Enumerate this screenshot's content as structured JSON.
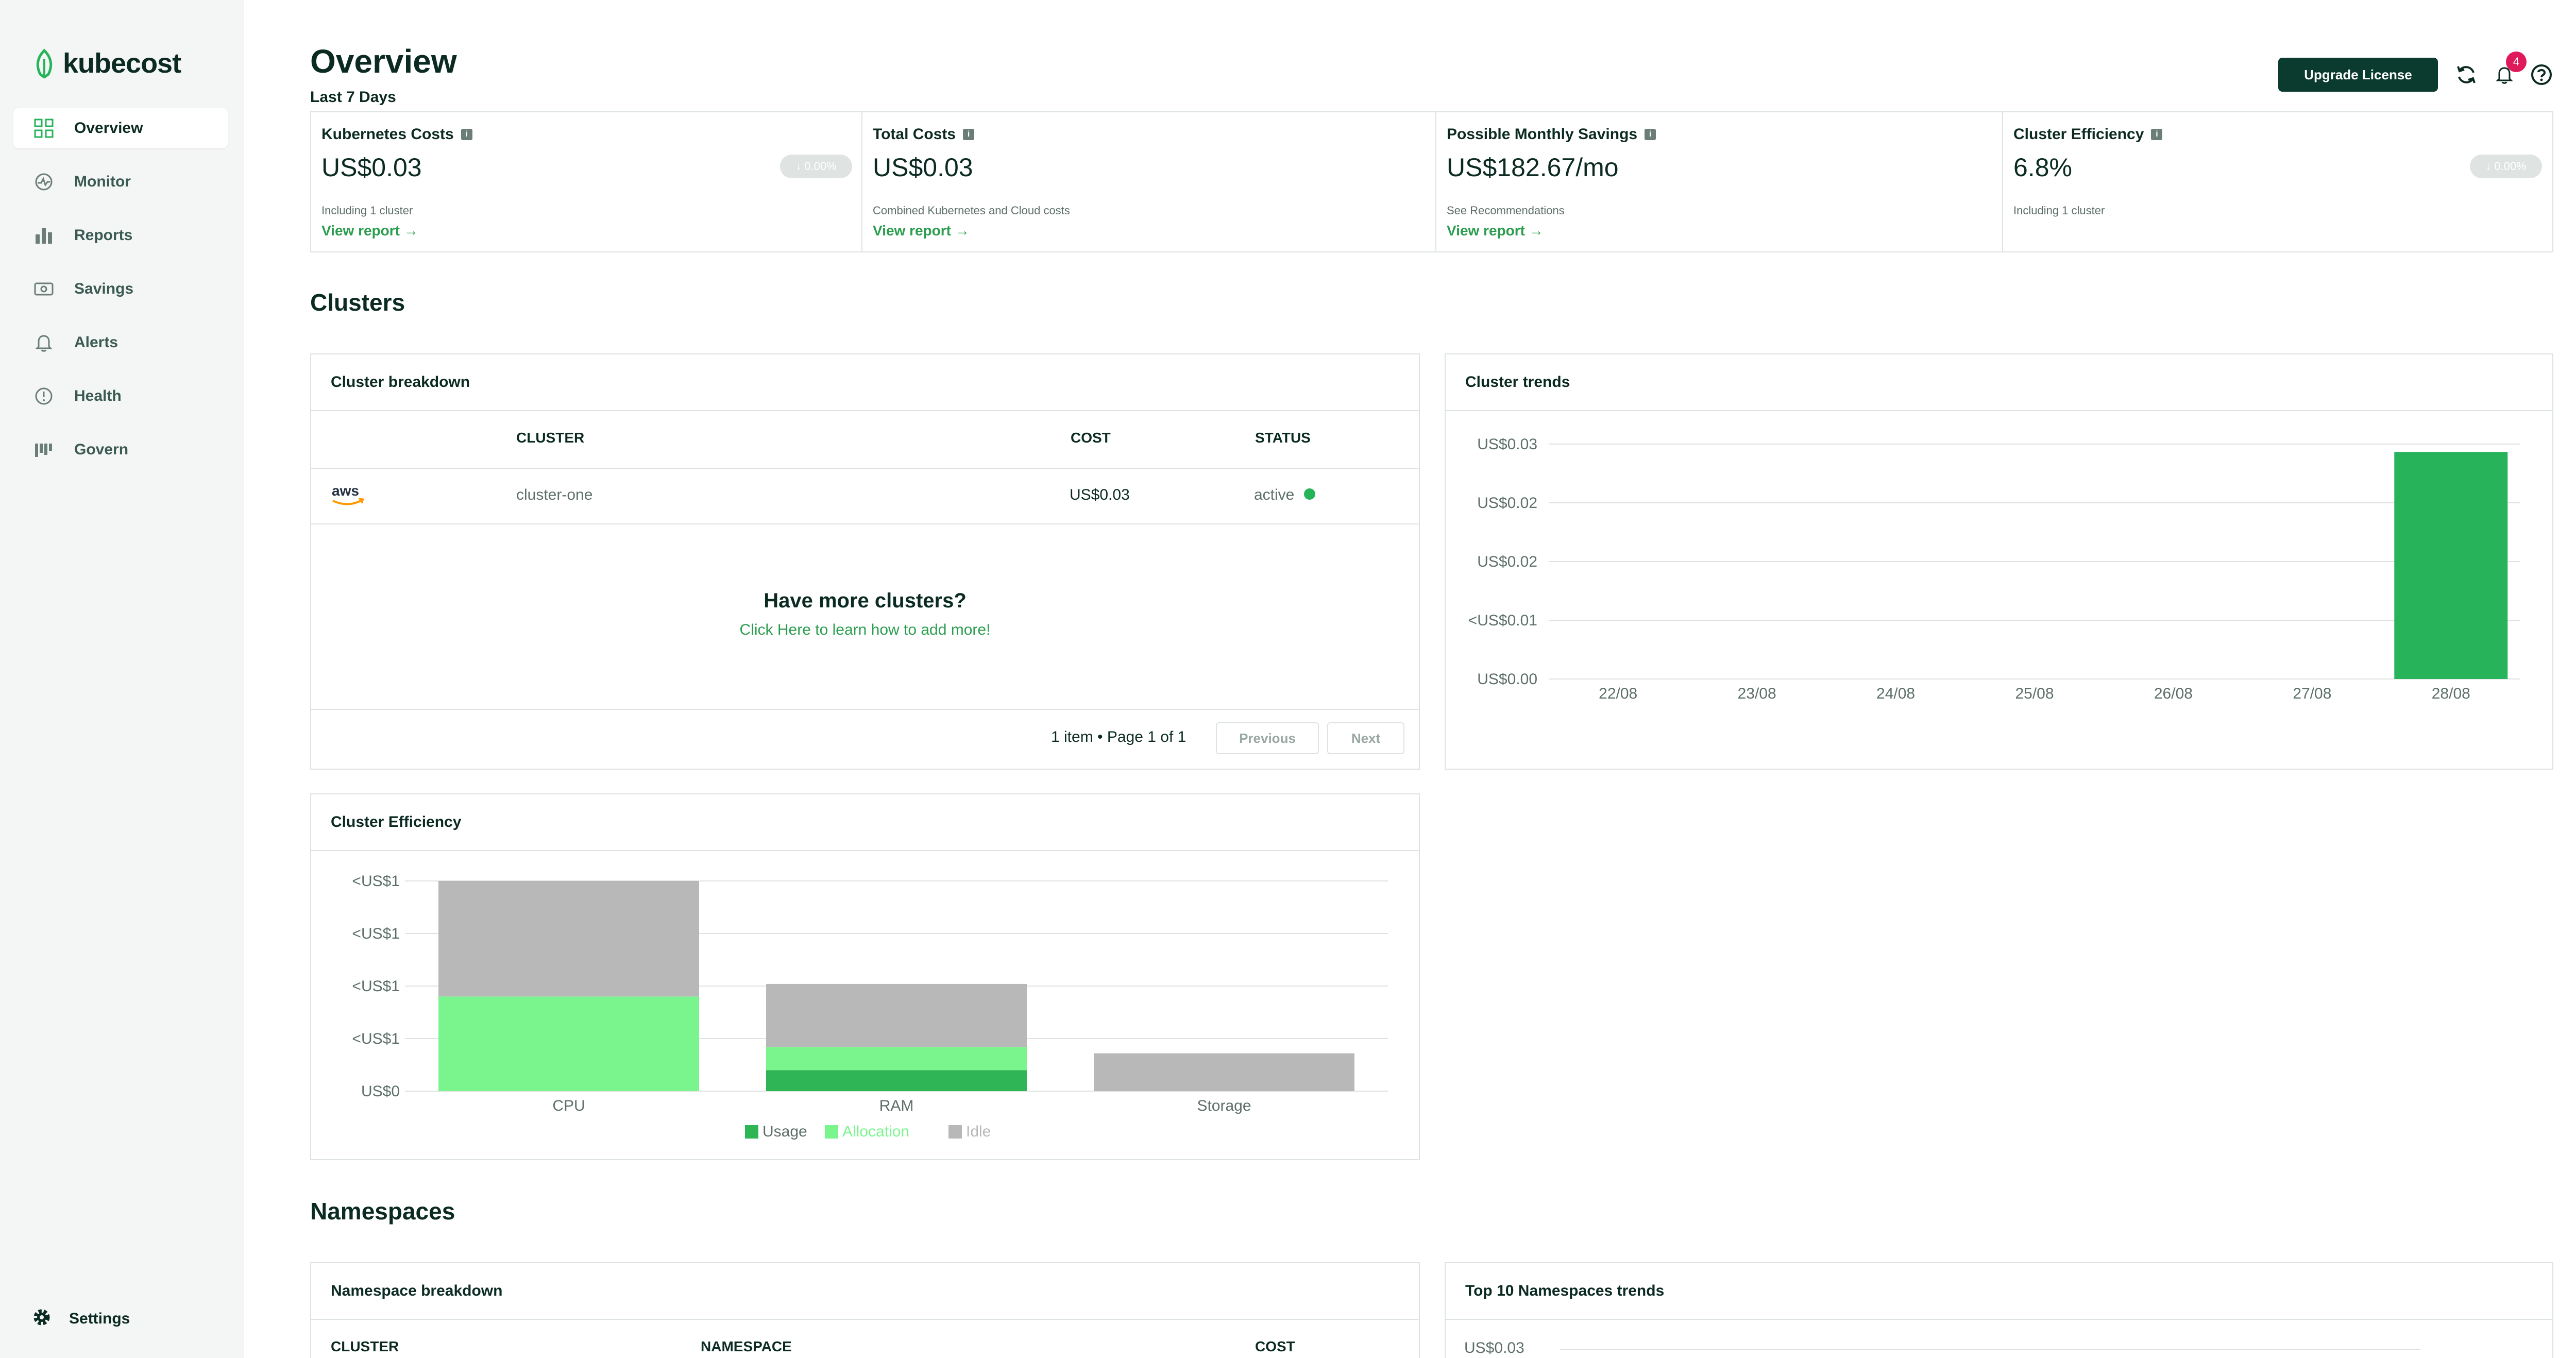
{
  "app": {
    "logo_text": "kubecost"
  },
  "sidebar": {
    "items": [
      {
        "label": "Overview",
        "icon": "grid-icon",
        "active": true
      },
      {
        "label": "Monitor",
        "icon": "monitor-icon",
        "active": false
      },
      {
        "label": "Reports",
        "icon": "bar-chart-icon",
        "active": false
      },
      {
        "label": "Savings",
        "icon": "money-icon",
        "active": false
      },
      {
        "label": "Alerts",
        "icon": "bell-icon",
        "active": false
      },
      {
        "label": "Health",
        "icon": "alert-circle-icon",
        "active": false
      },
      {
        "label": "Govern",
        "icon": "govern-icon",
        "active": false
      }
    ],
    "settings_label": "Settings"
  },
  "header": {
    "title": "Overview",
    "subtitle": "Last 7 Days",
    "upgrade_label": "Upgrade License",
    "notification_count": "4"
  },
  "kpis": [
    {
      "title": "Kubernetes Costs",
      "value": "US$0.03",
      "badge": "↓ 0.00%",
      "note": "Including 1 cluster",
      "link": "View report →"
    },
    {
      "title": "Total Costs",
      "value": "US$0.03",
      "badge": "",
      "note": "Combined Kubernetes and Cloud costs",
      "link": "View report →"
    },
    {
      "title": "Possible Monthly Savings",
      "value": "US$182.67/mo",
      "badge": "",
      "note": "See Recommendations",
      "link": "View report →"
    },
    {
      "title": "Cluster Efficiency",
      "value": "6.8%",
      "badge": "↓ 0.00%",
      "note": "Including 1 cluster",
      "link": ""
    }
  ],
  "clusters": {
    "section_title": "Clusters",
    "breakdown": {
      "title": "Cluster breakdown",
      "columns": [
        "CLUSTER",
        "COST",
        "STATUS"
      ],
      "rows": [
        {
          "provider": "aws",
          "cluster": "cluster-one",
          "cost": "US$0.03",
          "status": "active"
        }
      ],
      "more_title": "Have more clusters?",
      "more_link": "Click Here to learn how to add more!",
      "pagination": "1 item • Page 1 of 1",
      "prev_label": "Previous",
      "next_label": "Next"
    },
    "trends": {
      "title": "Cluster trends"
    },
    "efficiency": {
      "title": "Cluster Efficiency"
    }
  },
  "namespaces": {
    "section_title": "Namespaces",
    "breakdown": {
      "title": "Namespace breakdown",
      "columns": [
        "CLUSTER",
        "NAMESPACE",
        "COST"
      ]
    },
    "trends": {
      "title": "Top 10 Namespaces trends",
      "first_tick": "US$0.03"
    }
  },
  "chart_data": [
    {
      "type": "bar",
      "title": "Cluster trends",
      "categories": [
        "22/08",
        "23/08",
        "24/08",
        "25/08",
        "26/08",
        "27/08",
        "28/08"
      ],
      "series": [
        {
          "values": [
            0,
            0,
            0,
            0,
            0,
            0,
            0.029
          ]
        }
      ],
      "y_ticks": [
        "US$0.03",
        "US$0.02",
        "US$0.02",
        "<US$0.01",
        "US$0.00"
      ],
      "ylim": [
        0,
        0.03
      ],
      "grid": true,
      "colors": {
        "bar": "#27b35a"
      }
    },
    {
      "type": "bar",
      "stacked": true,
      "title": "Cluster Efficiency",
      "categories": [
        "CPU",
        "RAM",
        "Storage"
      ],
      "series": [
        {
          "name": "Usage",
          "values": [
            0,
            0.1,
            0
          ],
          "color": "#2fb556"
        },
        {
          "name": "Allocation",
          "values": [
            0.45,
            0.11,
            0
          ],
          "color": "#7af58e"
        },
        {
          "name": "Idle",
          "values": [
            0.55,
            0.3,
            0.18
          ],
          "color": "#b8b8b8"
        }
      ],
      "y_ticks": [
        "<US$1",
        "<US$1",
        "<US$1",
        "<US$1",
        "US$0"
      ],
      "ylim": [
        0,
        1
      ],
      "grid": true,
      "legend": "bottom"
    }
  ]
}
